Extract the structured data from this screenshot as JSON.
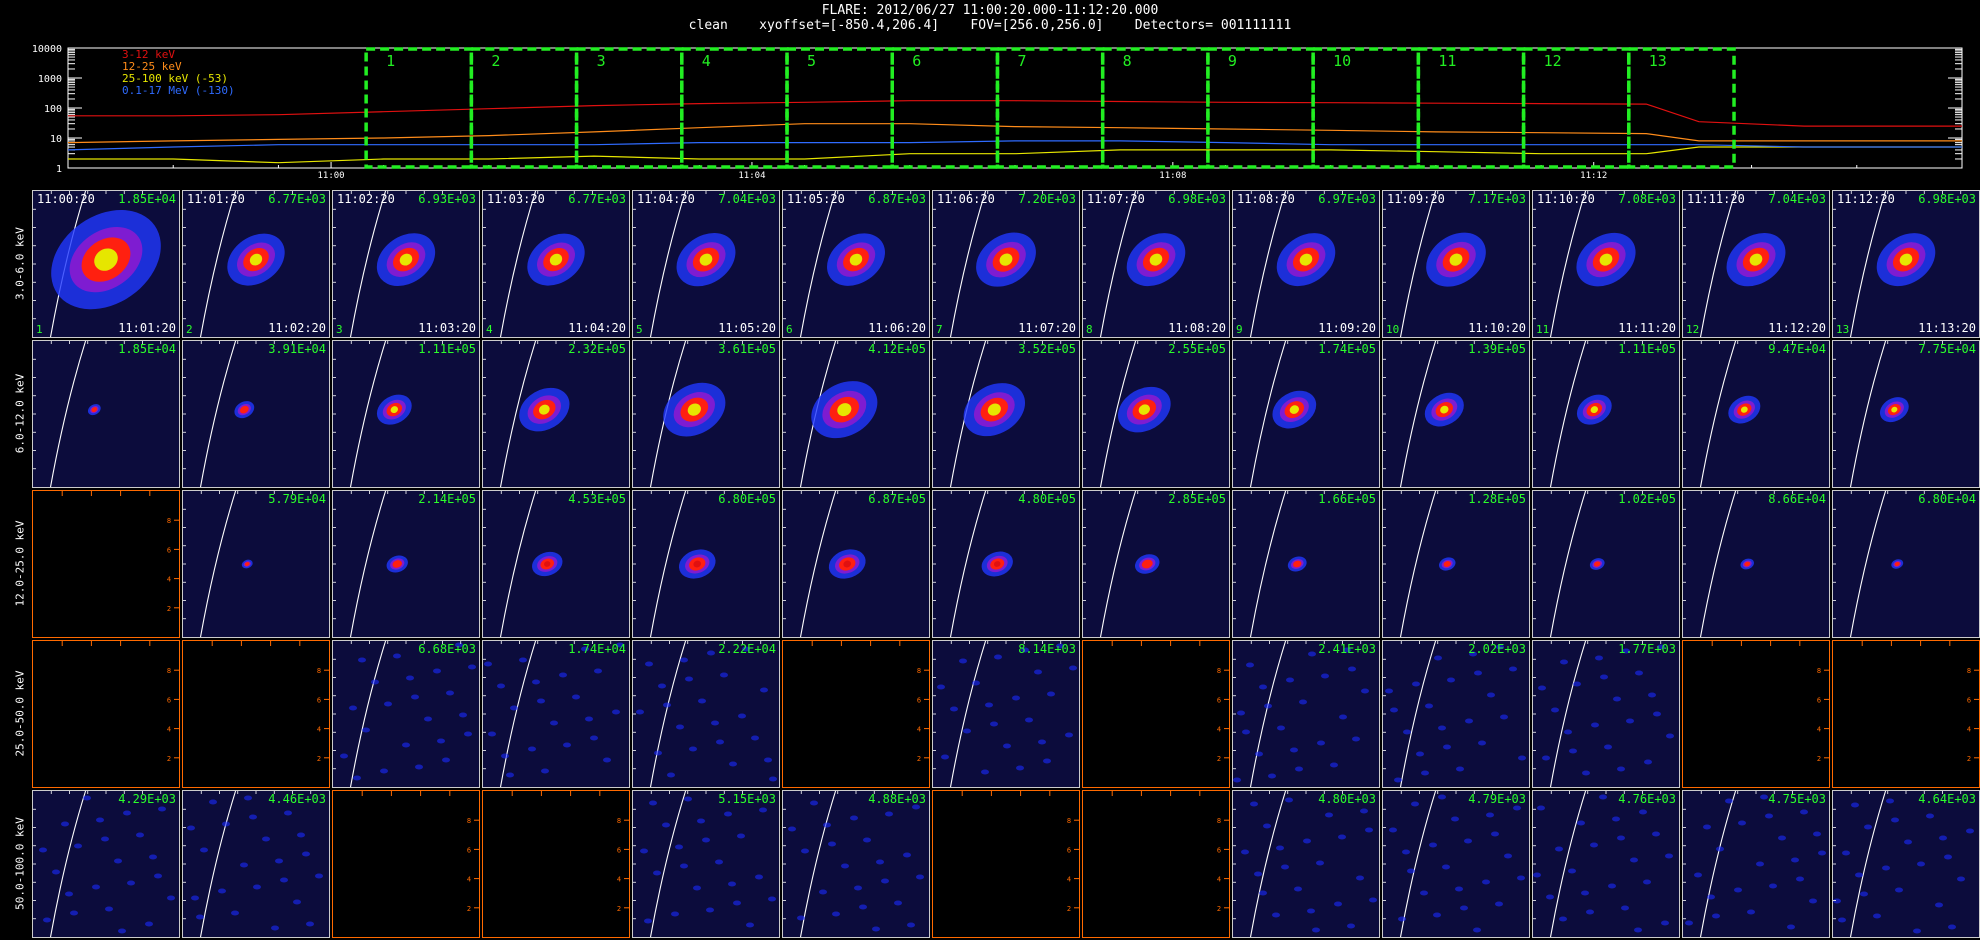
{
  "header": {
    "line1": "FLARE: 2012/06/27 11:00:20.000-11:12:20.000",
    "line2": "clean    xyoffset=[-850.4,206.4]    FOV=[256.0,256.0]    Detectors= 001111111"
  },
  "colors": {
    "s0": "#e01010",
    "s1": "#ff8c1a",
    "s2": "#e6e600",
    "s3": "#2f6bff",
    "intervals": "#22ee22",
    "panel_grid": "#ffffff",
    "empty_axis": "#ff6a00"
  },
  "chart_data": [
    {
      "type": "line",
      "title": "FLARE: 2012/06/27 11:00:20.000-11:12:20.000",
      "ylabel": "",
      "yscale": "log",
      "ylim": [
        1,
        10000
      ],
      "y_ticks": [
        "10000",
        "1000",
        "100",
        "10",
        "1"
      ],
      "xlim": [
        "10:57:30",
        "11:15:30"
      ],
      "x_ticks": [
        "11:00",
        "11:04",
        "11:08",
        "11:12"
      ],
      "x": [
        "10:57:30",
        "10:58:30",
        "10:59:30",
        "11:00:30",
        "11:01:30",
        "11:02:30",
        "11:03:30",
        "11:04:30",
        "11:05:30",
        "11:06:30",
        "11:07:30",
        "11:08:30",
        "11:09:30",
        "11:10:30",
        "11:11:30",
        "11:12:30",
        "11:13:00",
        "11:14:00",
        "11:15:30"
      ],
      "series": [
        {
          "name": "3-12 keV",
          "color": "#e01010",
          "values": [
            55,
            55,
            60,
            75,
            95,
            120,
            140,
            155,
            175,
            175,
            165,
            155,
            150,
            145,
            140,
            135,
            35,
            25,
            25
          ]
        },
        {
          "name": "12-25 keV",
          "color": "#ff8c1a",
          "values": [
            7,
            8,
            9,
            10,
            12,
            16,
            22,
            30,
            30,
            24,
            22,
            20,
            18,
            16,
            15,
            14,
            8,
            8,
            8
          ]
        },
        {
          "name": "25-100 keV (-53)",
          "color": "#e6e600",
          "values": [
            2,
            2,
            1.5,
            2,
            2,
            2.5,
            2,
            2,
            3,
            3,
            4,
            4,
            4,
            3.5,
            3,
            3,
            5,
            5,
            5
          ]
        },
        {
          "name": "0.1-17 MeV (-130)",
          "color": "#2f6bff",
          "values": [
            4,
            5,
            6,
            6,
            6,
            6,
            7,
            7,
            7,
            8,
            8,
            7,
            6,
            6,
            6,
            6,
            6,
            5,
            5
          ]
        }
      ],
      "intervals": [
        {
          "label": "1",
          "start": "11:00:20",
          "end": "11:01:20"
        },
        {
          "label": "2",
          "start": "11:01:20",
          "end": "11:02:20"
        },
        {
          "label": "3",
          "start": "11:02:20",
          "end": "11:03:20"
        },
        {
          "label": "4",
          "start": "11:03:20",
          "end": "11:04:20"
        },
        {
          "label": "5",
          "start": "11:04:20",
          "end": "11:05:20"
        },
        {
          "label": "6",
          "start": "11:05:20",
          "end": "11:06:20"
        },
        {
          "label": "7",
          "start": "11:06:20",
          "end": "11:07:20"
        },
        {
          "label": "8",
          "start": "11:07:20",
          "end": "11:08:20"
        },
        {
          "label": "9",
          "start": "11:08:20",
          "end": "11:09:20"
        },
        {
          "label": "10",
          "start": "11:09:20",
          "end": "11:10:20"
        },
        {
          "label": "11",
          "start": "11:10:20",
          "end": "11:11:20"
        },
        {
          "label": "12",
          "start": "11:11:20",
          "end": "11:12:20"
        },
        {
          "label": "13",
          "start": "11:12:20",
          "end": "11:13:20"
        }
      ]
    },
    {
      "type": "heatmap",
      "rows": [
        "3.0-6.0 keV",
        "6.0-12.0 keV",
        "12.0-25.0 keV",
        "25.0-50.0 keV",
        "50.0-100.0 keV"
      ],
      "start_times": [
        "11:00:20",
        "11:01:20",
        "11:02:20",
        "11:03:20",
        "11:04:20",
        "11:05:20",
        "11:06:20",
        "11:07:20",
        "11:08:20",
        "11:09:20",
        "11:10:20",
        "11:11:20",
        "11:12:20"
      ],
      "end_times": [
        "11:01:20",
        "11:02:20",
        "11:03:20",
        "11:04:20",
        "11:05:20",
        "11:06:20",
        "11:07:20",
        "11:08:20",
        "11:09:20",
        "11:10:20",
        "11:11:20",
        "11:12:20",
        "11:13:20"
      ],
      "interval_numbers": [
        "1",
        "2",
        "3",
        "4",
        "5",
        "6",
        "7",
        "8",
        "9",
        "10",
        "11",
        "12",
        "13"
      ],
      "max_values": [
        [
          "1.85E+04",
          "6.77E+03",
          "6.93E+03",
          "6.77E+03",
          "7.04E+03",
          "6.87E+03",
          "7.20E+03",
          "6.98E+03",
          "6.97E+03",
          "7.17E+03",
          "7.08E+03",
          "7.04E+03",
          "6.98E+03"
        ],
        [
          "1.85E+04",
          "3.91E+04",
          "1.11E+05",
          "2.32E+05",
          "3.61E+05",
          "4.12E+05",
          "3.52E+05",
          "2.55E+05",
          "1.74E+05",
          "1.39E+05",
          "1.11E+05",
          "9.47E+04",
          "7.75E+04"
        ],
        [
          "",
          "5.79E+04",
          "2.14E+05",
          "4.53E+05",
          "6.80E+05",
          "6.87E+05",
          "4.80E+05",
          "2.85E+05",
          "1.66E+05",
          "1.28E+05",
          "1.02E+05",
          "8.66E+04",
          "6.80E+04"
        ],
        [
          "",
          "",
          "6.68E+03",
          "1.74E+04",
          "2.22E+04",
          "",
          "8.14E+03",
          "",
          "2.41E+03",
          "2.02E+03",
          "1.77E+03",
          "",
          ""
        ],
        [
          "4.29E+03",
          "4.46E+03",
          "",
          "",
          "5.15E+03",
          "4.88E+03",
          "",
          "",
          "4.80E+03",
          "4.79E+03",
          "4.76E+03",
          "4.75E+03",
          "4.64E+03"
        ]
      ],
      "empty_axis_ticks": [
        "2",
        "4",
        "6",
        "8"
      ]
    }
  ]
}
